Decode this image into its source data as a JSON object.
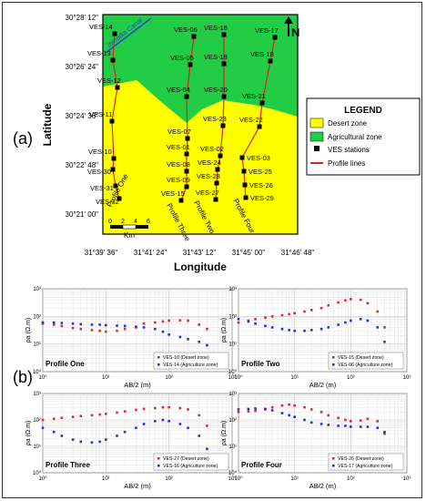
{
  "panel_labels": {
    "a": "(a)",
    "b": "(b)"
  },
  "map": {
    "canal_label": "Ismailia Canal",
    "north_label": "N",
    "ylabel": "Latitude",
    "xlabel": "Longitude",
    "lat_ticks": [
      "30°28' 12\"",
      "30°26' 24\"",
      "30°24' 36\"",
      "30°22' 48\"",
      "30°21' 00\""
    ],
    "lon_ticks": [
      "31°39' 36\"",
      "31°41' 24\"",
      "31°43' 12\"",
      "31°45' 00\"",
      "31°46' 48\""
    ],
    "scale_ticks": [
      "0",
      "2",
      "4",
      "6"
    ],
    "scale_unit": "Km",
    "profile_labels": [
      "Profile One",
      "Profile Three",
      "Profile Two",
      "Profile Four"
    ],
    "colors": {
      "desert": "#ffff00",
      "agri": "#22cc44",
      "profile": "#dd2222",
      "station": "#000000"
    },
    "stations": [
      {
        "id": "VES-14"
      },
      {
        "id": "VES-13"
      },
      {
        "id": "VES-12"
      },
      {
        "id": "VES-11"
      },
      {
        "id": "VES-10"
      },
      {
        "id": "VES-30"
      },
      {
        "id": "VES-31"
      },
      {
        "id": "VES-32"
      },
      {
        "id": "VES-06"
      },
      {
        "id": "VES-05"
      },
      {
        "id": "VES-04"
      },
      {
        "id": "VES-07"
      },
      {
        "id": "VES-01"
      },
      {
        "id": "VES-08"
      },
      {
        "id": "VES-09"
      },
      {
        "id": "VES-15"
      },
      {
        "id": "VES-16"
      },
      {
        "id": "VES-19"
      },
      {
        "id": "VES-20"
      },
      {
        "id": "VES-23"
      },
      {
        "id": "VES-02"
      },
      {
        "id": "VES-24"
      },
      {
        "id": "VES-28"
      },
      {
        "id": "VES-27"
      },
      {
        "id": "VES-17"
      },
      {
        "id": "VES-18"
      },
      {
        "id": "VES-21"
      },
      {
        "id": "VES-22"
      },
      {
        "id": "VES-03"
      },
      {
        "id": "VES-25"
      },
      {
        "id": "VES-26"
      },
      {
        "id": "VES-29"
      }
    ]
  },
  "legend": {
    "title": "LEGEND",
    "items": [
      {
        "label": "Desert zone",
        "color": "#ffff00",
        "kind": "box"
      },
      {
        "label": "Agricultural zone",
        "color": "#22cc44",
        "kind": "box"
      },
      {
        "label": "VES stations",
        "color": "#000000",
        "kind": "square"
      },
      {
        "label": "Profile lines",
        "color": "#dd2222",
        "kind": "line"
      }
    ]
  },
  "chart_data": [
    {
      "type": "scatter",
      "title": "Profile One",
      "xlabel": "AB/2 (m)",
      "ylabel": "ρa (Ω.m)",
      "xscale": "log",
      "yscale": "log",
      "xlim": [
        1,
        1000
      ],
      "ylim": [
        1,
        1000
      ],
      "x_tick_labels": [
        "10⁰",
        "10¹",
        "10²",
        "10³"
      ],
      "y_tick_labels": [
        "10⁰",
        "10¹",
        "10²",
        "10³"
      ],
      "grid": true,
      "legend_position": "bottom-right",
      "series": [
        {
          "name": "VES-10 (Desert zone)",
          "color": "#e8262b",
          "x": [
            1,
            1.5,
            2,
            3,
            4,
            6,
            8,
            10,
            15,
            20,
            30,
            40,
            60,
            80,
            100,
            150,
            200,
            300,
            400
          ],
          "y": [
            55,
            50,
            45,
            38,
            35,
            32,
            30,
            28,
            30,
            35,
            40,
            55,
            60,
            65,
            70,
            72,
            70,
            50,
            35
          ]
        },
        {
          "name": "VES-14 (Agriculture zone)",
          "color": "#2233dd",
          "x": [
            1,
            1.5,
            2,
            3,
            4,
            6,
            8,
            10,
            15,
            20,
            30,
            40,
            60,
            80,
            100,
            150,
            200,
            300,
            400
          ],
          "y": [
            60,
            60,
            58,
            55,
            52,
            50,
            50,
            48,
            46,
            45,
            42,
            40,
            35,
            28,
            22,
            18,
            15,
            12,
            9
          ]
        }
      ]
    },
    {
      "type": "scatter",
      "title": "Profile Two",
      "xlabel": "AB/2 (m)",
      "ylabel": "ρa (Ω.m)",
      "xscale": "log",
      "yscale": "log",
      "xlim": [
        1,
        1000
      ],
      "ylim": [
        1,
        1000
      ],
      "x_tick_labels": [
        "10⁰",
        "10¹",
        "10²",
        "10³"
      ],
      "y_tick_labels": [
        "10⁰",
        "10¹",
        "10²",
        "10³"
      ],
      "grid": true,
      "legend_position": "bottom-right",
      "series": [
        {
          "name": "VES-15 (Desert zone)",
          "color": "#e8262b",
          "x": [
            1,
            1.5,
            2,
            3,
            4,
            6,
            8,
            10,
            15,
            20,
            30,
            40,
            60,
            80,
            100,
            150,
            200,
            300,
            400
          ],
          "y": [
            60,
            70,
            80,
            90,
            100,
            110,
            120,
            130,
            150,
            170,
            200,
            250,
            320,
            380,
            420,
            400,
            300,
            150,
            40
          ]
        },
        {
          "name": "VES-06 (Agriculture zone)",
          "color": "#2233dd",
          "x": [
            1,
            1.5,
            2,
            3,
            4,
            6,
            8,
            10,
            15,
            20,
            30,
            40,
            60,
            80,
            100,
            150,
            200,
            300,
            400
          ],
          "y": [
            80,
            65,
            55,
            45,
            40,
            35,
            32,
            30,
            30,
            32,
            35,
            40,
            50,
            60,
            70,
            80,
            70,
            40,
            12
          ]
        }
      ]
    },
    {
      "type": "scatter",
      "title": "Profile Three",
      "xlabel": "AB/2 (m)",
      "ylabel": "ρa (Ω.m)",
      "xscale": "log",
      "yscale": "log",
      "xlim": [
        1,
        1000
      ],
      "ylim": [
        1,
        1000
      ],
      "x_tick_labels": [
        "10⁰",
        "10¹",
        "10²",
        "10³"
      ],
      "y_tick_labels": [
        "10⁰",
        "10¹",
        "10²",
        "10³"
      ],
      "grid": true,
      "legend_position": "bottom-right",
      "series": [
        {
          "name": "VES-27 (Desert zone)",
          "color": "#e8262b",
          "x": [
            1,
            1.5,
            2,
            3,
            4,
            6,
            8,
            10,
            15,
            20,
            30,
            40,
            60,
            80,
            100,
            150,
            200,
            300,
            400
          ],
          "y": [
            100,
            110,
            120,
            130,
            140,
            150,
            160,
            170,
            190,
            210,
            240,
            260,
            280,
            300,
            300,
            280,
            250,
            150,
            60
          ]
        },
        {
          "name": "VES-16 (Agriculture zone)",
          "color": "#2233dd",
          "x": [
            1,
            1.5,
            2,
            3,
            4,
            6,
            8,
            10,
            15,
            20,
            30,
            40,
            60,
            80,
            100,
            150,
            200,
            300,
            400
          ],
          "y": [
            50,
            35,
            25,
            18,
            15,
            14,
            15,
            18,
            25,
            35,
            50,
            70,
            90,
            100,
            90,
            70,
            50,
            25,
            8
          ]
        }
      ]
    },
    {
      "type": "scatter",
      "title": "Profile Four",
      "xlabel": "AB/2 (m)",
      "ylabel": "ρa (Ω.m)",
      "xscale": "log",
      "yscale": "log",
      "xlim": [
        1,
        1000
      ],
      "ylim": [
        1,
        1000
      ],
      "x_tick_labels": [
        "10⁰",
        "10¹",
        "10²",
        "10³"
      ],
      "y_tick_labels": [
        "10⁰",
        "10¹",
        "10²",
        "10³"
      ],
      "grid": true,
      "legend_position": "bottom-right",
      "series": [
        {
          "name": "VES-26 (Desert zone)",
          "color": "#e8262b",
          "x": [
            1,
            1.5,
            2,
            3,
            4,
            6,
            8,
            10,
            15,
            20,
            30,
            40,
            60,
            80,
            100,
            150,
            200,
            300,
            400
          ],
          "y": [
            200,
            210,
            220,
            250,
            300,
            350,
            380,
            350,
            300,
            250,
            200,
            150,
            120,
            100,
            90,
            95,
            110,
            90,
            30
          ]
        },
        {
          "name": "VES-17 (Agriculture zone)",
          "color": "#2233dd",
          "x": [
            1,
            1.5,
            2,
            3,
            4,
            6,
            8,
            10,
            15,
            20,
            30,
            40,
            60,
            80,
            100,
            150,
            200,
            300,
            400
          ],
          "y": [
            250,
            260,
            270,
            260,
            230,
            180,
            150,
            130,
            100,
            80,
            70,
            65,
            60,
            60,
            55,
            55,
            55,
            50,
            35
          ]
        }
      ]
    }
  ]
}
